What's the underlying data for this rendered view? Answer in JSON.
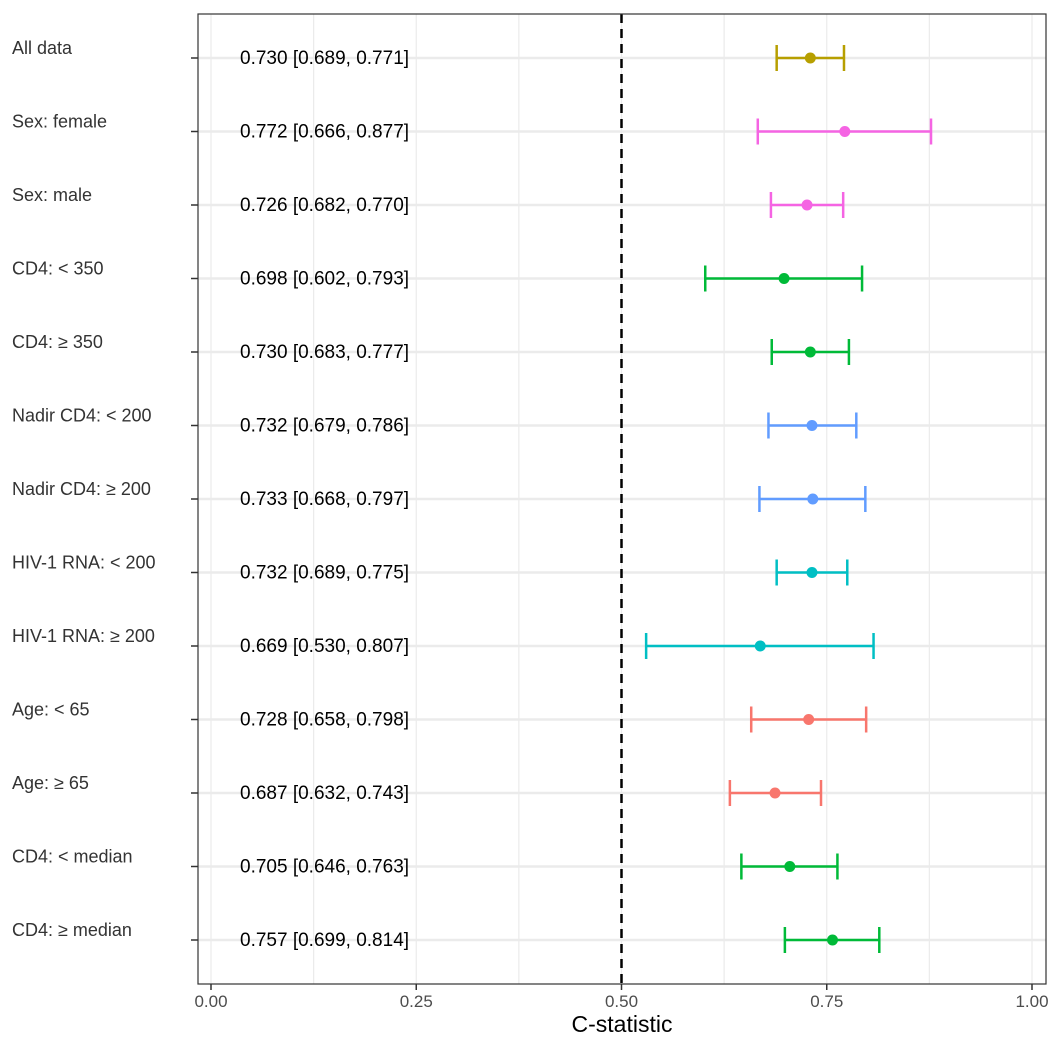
{
  "chart_data": {
    "type": "forest",
    "xlabel": "C-statistic",
    "xlim": [
      0,
      1
    ],
    "x_ticks": [
      0,
      0.25,
      0.5,
      0.75,
      1
    ],
    "x_tick_labels": [
      "0.00",
      "0.25",
      "0.50",
      "0.75",
      "1.00"
    ],
    "reference_line": 0.5,
    "grid": true,
    "rows": [
      {
        "label": "All data",
        "estimate": 0.73,
        "lower": 0.689,
        "upper": 0.771,
        "text": "0.730 [0.689, 0.771]",
        "color": "#B79F00"
      },
      {
        "label": "Sex: female",
        "estimate": 0.772,
        "lower": 0.666,
        "upper": 0.877,
        "text": "0.772 [0.666, 0.877]",
        "color": "#F564E3"
      },
      {
        "label": "Sex: male",
        "estimate": 0.726,
        "lower": 0.682,
        "upper": 0.77,
        "text": "0.726 [0.682, 0.770]",
        "color": "#F564E3"
      },
      {
        "label": "CD4: < 350",
        "estimate": 0.698,
        "lower": 0.602,
        "upper": 0.793,
        "text": "0.698 [0.602, 0.793]",
        "color": "#00BA38"
      },
      {
        "label": "CD4: ≥ 350",
        "estimate": 0.73,
        "lower": 0.683,
        "upper": 0.777,
        "text": "0.730 [0.683, 0.777]",
        "color": "#00BA38"
      },
      {
        "label": "Nadir CD4: < 200",
        "estimate": 0.732,
        "lower": 0.679,
        "upper": 0.786,
        "text": "0.732 [0.679, 0.786]",
        "color": "#619CFF"
      },
      {
        "label": "Nadir CD4: ≥ 200",
        "estimate": 0.733,
        "lower": 0.668,
        "upper": 0.797,
        "text": "0.733 [0.668, 0.797]",
        "color": "#619CFF"
      },
      {
        "label": "HIV-1 RNA: < 200",
        "estimate": 0.732,
        "lower": 0.689,
        "upper": 0.775,
        "text": "0.732 [0.689, 0.775]",
        "color": "#00BFC4"
      },
      {
        "label": "HIV-1 RNA: ≥ 200",
        "estimate": 0.669,
        "lower": 0.53,
        "upper": 0.807,
        "text": "0.669 [0.530, 0.807]",
        "color": "#00BFC4"
      },
      {
        "label": "Age: < 65",
        "estimate": 0.728,
        "lower": 0.658,
        "upper": 0.798,
        "text": "0.728 [0.658, 0.798]",
        "color": "#F8766D"
      },
      {
        "label": "Age: ≥ 65",
        "estimate": 0.687,
        "lower": 0.632,
        "upper": 0.743,
        "text": "0.687 [0.632, 0.743]",
        "color": "#F8766D"
      },
      {
        "label": "CD4: < median",
        "estimate": 0.705,
        "lower": 0.646,
        "upper": 0.763,
        "text": "0.705 [0.646, 0.763]",
        "color": "#00BA38"
      },
      {
        "label": "CD4: ≥ median",
        "estimate": 0.757,
        "lower": 0.699,
        "upper": 0.814,
        "text": "0.757 [0.699, 0.814]",
        "color": "#00BA38"
      }
    ]
  }
}
